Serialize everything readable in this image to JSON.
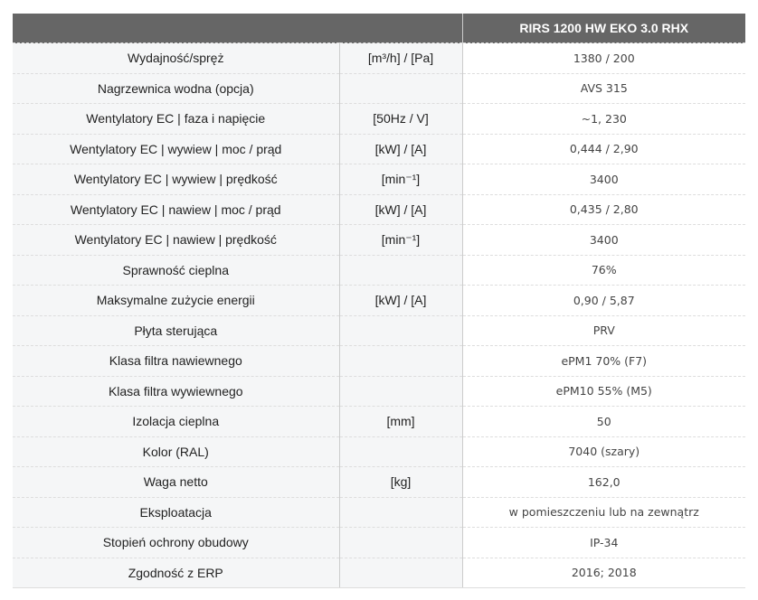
{
  "header": {
    "model": "RIRS 1200 HW EKO 3.0 RHX"
  },
  "rows": [
    {
      "label": "Wydajność/spręż",
      "unit": "[m³/h] / [Pa]",
      "value": "1380 / 200"
    },
    {
      "label": "Nagrzewnica wodna (opcja)",
      "unit": "",
      "value": "AVS 315"
    },
    {
      "label": "Wentylatory EC | faza i napięcie",
      "unit": "[50Hz / V]",
      "value": "~1, 230"
    },
    {
      "label": "Wentylatory EC | wywiew | moc / prąd",
      "unit": "[kW] / [A]",
      "value": "0,444 / 2,90"
    },
    {
      "label": "Wentylatory EC | wywiew | prędkość",
      "unit": "[min⁻¹]",
      "value": "3400"
    },
    {
      "label": "Wentylatory EC | nawiew | moc / prąd",
      "unit": "[kW] / [A]",
      "value": "0,435 / 2,80"
    },
    {
      "label": "Wentylatory EC | nawiew | prędkość",
      "unit": "[min⁻¹]",
      "value": "3400"
    },
    {
      "label": "Sprawność cieplna",
      "unit": "",
      "value": "76%"
    },
    {
      "label": "Maksymalne zużycie energii",
      "unit": "[kW] / [A]",
      "value": "0,90 / 5,87"
    },
    {
      "label": "Płyta sterująca",
      "unit": "",
      "value": "PRV"
    },
    {
      "label": "Klasa filtra nawiewnego",
      "unit": "",
      "value": "ePM1 70% (F7)"
    },
    {
      "label": "Klasa filtra wywiewnego",
      "unit": "",
      "value": "ePM10 55% (M5)"
    },
    {
      "label": "Izolacja cieplna",
      "unit": "[mm]",
      "value": "50"
    },
    {
      "label": "Kolor (RAL)",
      "unit": "",
      "value": "7040 (szary)"
    },
    {
      "label": "Waga netto",
      "unit": "[kg]",
      "value": "162,0"
    },
    {
      "label": "Eksploatacja",
      "unit": "",
      "value": "w pomieszczeniu lub na zewnątrz"
    },
    {
      "label": "Stopień ochrony obudowy",
      "unit": "",
      "value": "IP-34"
    },
    {
      "label": "Zgodność z ERP",
      "unit": "",
      "value": "2016; 2018"
    }
  ]
}
